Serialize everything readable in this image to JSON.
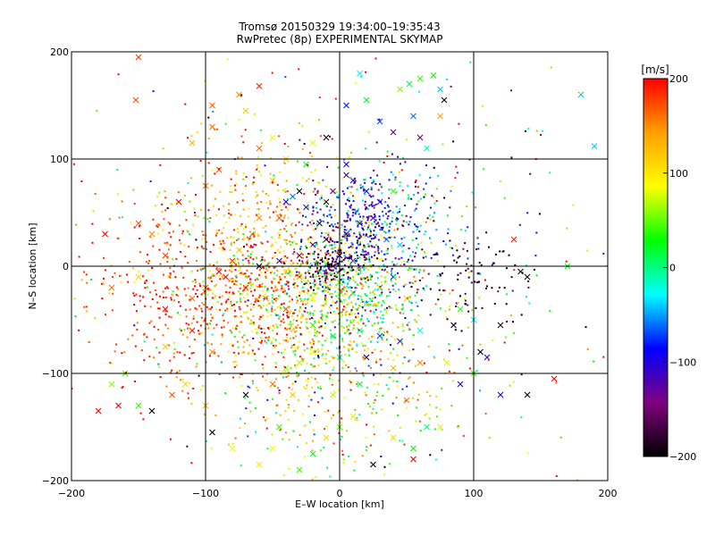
{
  "chart_data": {
    "type": "scatter",
    "title": "Tromsø 20150329 19:34:00–19:35:43",
    "subtitle": "RwPretec (8p) EXPERIMENTAL SKYMAP",
    "xlabel": "E–W location [km]",
    "ylabel": "N–S location [km]",
    "xlim": [
      -200,
      200
    ],
    "ylim": [
      -200,
      200
    ],
    "xticks": [
      -200,
      -100,
      0,
      100,
      200
    ],
    "yticks": [
      -200,
      -100,
      0,
      100,
      200
    ],
    "grid": true,
    "colorbar": {
      "label": "[m/s]",
      "min": -200,
      "max": 200,
      "ticks": [
        200,
        100,
        0,
        -100,
        -200
      ],
      "colors": [
        "#ff0000",
        "#ffa000",
        "#ffff00",
        "#00ff00",
        "#00ffff",
        "#0000ff",
        "#800080",
        "#000000"
      ]
    },
    "series": [
      {
        "marker": "x",
        "points": [
          [
            -150,
            195,
            180
          ],
          [
            -152,
            155,
            170
          ],
          [
            -95,
            150,
            165
          ],
          [
            -75,
            160,
            150
          ],
          [
            -60,
            168,
            190
          ],
          [
            -70,
            145,
            120
          ],
          [
            -95,
            130,
            160
          ],
          [
            -110,
            115,
            130
          ],
          [
            -50,
            120,
            90
          ],
          [
            -20,
            115,
            80
          ],
          [
            -10,
            120,
            -200
          ],
          [
            5,
            150,
            -80
          ],
          [
            20,
            155,
            20
          ],
          [
            30,
            135,
            -70
          ],
          [
            40,
            125,
            -150
          ],
          [
            45,
            165,
            60
          ],
          [
            52,
            170,
            10
          ],
          [
            60,
            175,
            40
          ],
          [
            70,
            178,
            30
          ],
          [
            75,
            165,
            -40
          ],
          [
            78,
            155,
            -190
          ],
          [
            75,
            140,
            140
          ],
          [
            55,
            140,
            -60
          ],
          [
            60,
            120,
            -150
          ],
          [
            65,
            110,
            -10
          ],
          [
            180,
            160,
            -40
          ],
          [
            190,
            112,
            -40
          ],
          [
            15,
            180,
            -30
          ],
          [
            -40,
            100,
            110
          ],
          [
            -50,
            80,
            120
          ],
          [
            -90,
            90,
            170
          ],
          [
            -100,
            75,
            160
          ],
          [
            -120,
            60,
            200
          ],
          [
            -150,
            40,
            170
          ],
          [
            -175,
            30,
            200
          ],
          [
            -140,
            30,
            150
          ],
          [
            -130,
            10,
            180
          ],
          [
            -150,
            -10,
            110
          ],
          [
            -170,
            -20,
            160
          ],
          [
            -130,
            -40,
            200
          ],
          [
            -110,
            -60,
            190
          ],
          [
            -95,
            -80,
            150
          ],
          [
            -130,
            -75,
            120
          ],
          [
            -160,
            -100,
            40
          ],
          [
            -115,
            -110,
            110
          ],
          [
            -125,
            -120,
            170
          ],
          [
            -100,
            -130,
            130
          ],
          [
            -95,
            -155,
            -200
          ],
          [
            -80,
            -170,
            90
          ],
          [
            -60,
            -185,
            100
          ],
          [
            -50,
            -170,
            90
          ],
          [
            -30,
            -190,
            40
          ],
          [
            -20,
            -175,
            20
          ],
          [
            -10,
            -160,
            110
          ],
          [
            0,
            -150,
            50
          ],
          [
            10,
            -140,
            100
          ],
          [
            25,
            -185,
            -200
          ],
          [
            40,
            -160,
            110
          ],
          [
            55,
            -170,
            30
          ],
          [
            65,
            -150,
            0
          ],
          [
            -70,
            -120,
            -200
          ],
          [
            -50,
            -110,
            160
          ],
          [
            -40,
            -95,
            60
          ],
          [
            -30,
            -90,
            70
          ],
          [
            -20,
            -80,
            90
          ],
          [
            0,
            -85,
            0
          ],
          [
            20,
            -85,
            -180
          ],
          [
            40,
            -95,
            130
          ],
          [
            60,
            -90,
            150
          ],
          [
            80,
            -90,
            80
          ],
          [
            90,
            -110,
            -100
          ],
          [
            110,
            -85,
            -100
          ],
          [
            120,
            -55,
            -190
          ],
          [
            130,
            25,
            190
          ],
          [
            135,
            -5,
            -200
          ],
          [
            140,
            -10,
            -190
          ],
          [
            170,
            0,
            30
          ],
          [
            90,
            -40,
            40
          ],
          [
            100,
            -50,
            -30
          ],
          [
            85,
            -55,
            -200
          ],
          [
            60,
            -60,
            -30
          ],
          [
            45,
            -70,
            -120
          ],
          [
            30,
            -65,
            -70
          ],
          [
            15,
            -60,
            -10
          ],
          [
            -5,
            -65,
            20
          ],
          [
            -20,
            -55,
            40
          ],
          [
            -40,
            -40,
            170
          ],
          [
            -55,
            -30,
            150
          ],
          [
            -70,
            -20,
            190
          ],
          [
            -85,
            -10,
            200
          ],
          [
            -60,
            0,
            -200
          ],
          [
            -45,
            5,
            -90
          ],
          [
            -30,
            10,
            -150
          ],
          [
            -20,
            20,
            -160
          ],
          [
            -10,
            25,
            -180
          ],
          [
            5,
            30,
            -170
          ],
          [
            15,
            40,
            -120
          ],
          [
            25,
            45,
            -110
          ],
          [
            35,
            25,
            -60
          ],
          [
            45,
            20,
            -40
          ],
          [
            -10,
            60,
            -200
          ],
          [
            -5,
            70,
            -150
          ],
          [
            5,
            85,
            -120
          ],
          [
            10,
            80,
            -100
          ],
          [
            20,
            70,
            -90
          ],
          [
            30,
            60,
            -80
          ],
          [
            40,
            70,
            40
          ],
          [
            -15,
            40,
            -190
          ],
          [
            -25,
            55,
            -120
          ],
          [
            -35,
            65,
            -60
          ],
          [
            -30,
            70,
            -200
          ],
          [
            -40,
            60,
            -90
          ],
          [
            -45,
            45,
            170
          ],
          [
            -60,
            45,
            150
          ],
          [
            -65,
            30,
            200
          ],
          [
            -75,
            15,
            120
          ],
          [
            -80,
            5,
            190
          ],
          [
            -90,
            -5,
            200
          ],
          [
            -100,
            -20,
            170
          ],
          [
            -110,
            -30,
            160
          ],
          [
            -20,
            -30,
            90
          ],
          [
            -10,
            -20,
            60
          ],
          [
            0,
            -15,
            40
          ],
          [
            10,
            -25,
            20
          ],
          [
            20,
            -35,
            -30
          ],
          [
            30,
            -20,
            -60
          ],
          [
            40,
            -10,
            -80
          ],
          [
            50,
            -30,
            120
          ],
          [
            -30,
            -10,
            140
          ],
          [
            -40,
            -5,
            110
          ],
          [
            0,
            10,
            -200
          ],
          [
            10,
            5,
            -140
          ],
          [
            -5,
            0,
            -100
          ],
          [
            -15,
            -5,
            0
          ],
          [
            -25,
            -15,
            100
          ],
          [
            5,
            95,
            -100
          ],
          [
            -60,
            110,
            160
          ],
          [
            -25,
            95,
            20
          ],
          [
            100,
            -100,
            40
          ],
          [
            120,
            -120,
            -100
          ],
          [
            140,
            -120,
            -200
          ],
          [
            160,
            -105,
            200
          ],
          [
            105,
            -80,
            -200
          ],
          [
            -180,
            -135,
            200
          ],
          [
            -140,
            -135,
            -200
          ],
          [
            -165,
            -130,
            200
          ],
          [
            -170,
            -110,
            60
          ],
          [
            -150,
            -130,
            40
          ],
          [
            -35,
            -120,
            120
          ],
          [
            15,
            -110,
            20
          ],
          [
            -5,
            -120,
            70
          ],
          [
            50,
            -125,
            160
          ],
          [
            55,
            -180,
            200
          ],
          [
            75,
            -150,
            100
          ],
          [
            -45,
            -150,
            40
          ]
        ]
      },
      {
        "marker": "dot",
        "generator": {
          "clusters": [
            {
              "cx": -55,
              "cy": -20,
              "sx": 38,
              "sy": 32,
              "n": 620,
              "vmean": 150,
              "vspread": 55
            },
            {
              "cx": 15,
              "cy": 35,
              "sx": 18,
              "sy": 25,
              "n": 220,
              "vmean": -105,
              "vspread": 40
            },
            {
              "cx": -5,
              "cy": 0,
              "sx": 12,
              "sy": 12,
              "n": 160,
              "vmean": -170,
              "vspread": 35
            },
            {
              "cx": 10,
              "cy": -25,
              "sx": 28,
              "sy": 28,
              "n": 380,
              "vmean": 15,
              "vspread": 65
            },
            {
              "cx": -20,
              "cy": -60,
              "sx": 40,
              "sy": 45,
              "n": 360,
              "vmean": 95,
              "vspread": 55
            },
            {
              "cx": -60,
              "cy": 60,
              "sx": 40,
              "sy": 30,
              "n": 200,
              "vmean": 130,
              "vspread": 55
            },
            {
              "cx": -130,
              "cy": -20,
              "sx": 35,
              "sy": 45,
              "n": 230,
              "vmean": 185,
              "vspread": 25
            },
            {
              "cx": 100,
              "cy": -15,
              "sx": 25,
              "sy": 22,
              "n": 90,
              "vmean": -190,
              "vspread": 25
            },
            {
              "cx": 40,
              "cy": 40,
              "sx": 30,
              "sy": 30,
              "n": 200,
              "vmean": -60,
              "vspread": 60
            },
            {
              "cx": 0,
              "cy": -110,
              "sx": 50,
              "sy": 45,
              "n": 230,
              "vmean": 90,
              "vspread": 75
            },
            {
              "cx": 0,
              "cy": 0,
              "sx": 110,
              "sy": 110,
              "n": 420,
              "vmean": 60,
              "vspread": 160
            }
          ]
        }
      }
    ]
  }
}
